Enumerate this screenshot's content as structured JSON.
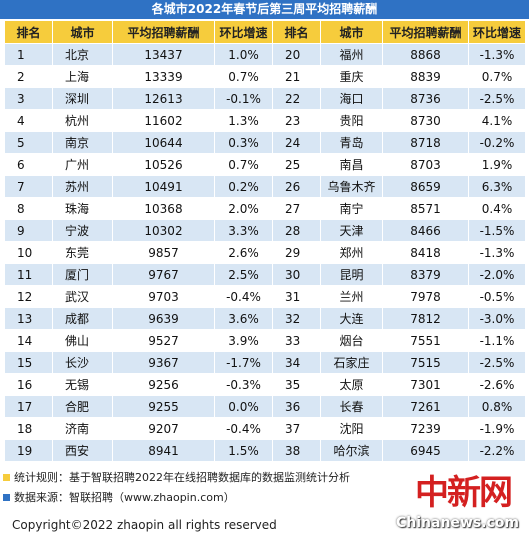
{
  "title": "各城市2022年春节后第三周平均招聘薪酬",
  "headers": [
    "排名",
    "城市",
    "平均招聘薪酬",
    "环比增速",
    "排名",
    "城市",
    "平均招聘薪酬",
    "环比增速"
  ],
  "rows": [
    {
      "rank_a": "1",
      "city_a": "北京",
      "salary_a": "13437",
      "growth_a": "1.0%",
      "rank_b": "20",
      "city_b": "福州",
      "salary_b": "8868",
      "growth_b": "-1.3%"
    },
    {
      "rank_a": "2",
      "city_a": "上海",
      "salary_a": "13339",
      "growth_a": "0.7%",
      "rank_b": "21",
      "city_b": "重庆",
      "salary_b": "8839",
      "growth_b": "0.7%"
    },
    {
      "rank_a": "3",
      "city_a": "深圳",
      "salary_a": "12613",
      "growth_a": "-0.1%",
      "rank_b": "22",
      "city_b": "海口",
      "salary_b": "8736",
      "growth_b": "-2.5%"
    },
    {
      "rank_a": "4",
      "city_a": "杭州",
      "salary_a": "11602",
      "growth_a": "1.3%",
      "rank_b": "23",
      "city_b": "贵阳",
      "salary_b": "8730",
      "growth_b": "4.1%"
    },
    {
      "rank_a": "5",
      "city_a": "南京",
      "salary_a": "10644",
      "growth_a": "0.3%",
      "rank_b": "24",
      "city_b": "青岛",
      "salary_b": "8718",
      "growth_b": "-0.2%"
    },
    {
      "rank_a": "6",
      "city_a": "广州",
      "salary_a": "10526",
      "growth_a": "0.7%",
      "rank_b": "25",
      "city_b": "南昌",
      "salary_b": "8703",
      "growth_b": "1.9%"
    },
    {
      "rank_a": "7",
      "city_a": "苏州",
      "salary_a": "10491",
      "growth_a": "0.2%",
      "rank_b": "26",
      "city_b": "乌鲁木齐",
      "salary_b": "8659",
      "growth_b": "6.3%"
    },
    {
      "rank_a": "8",
      "city_a": "珠海",
      "salary_a": "10368",
      "growth_a": "2.0%",
      "rank_b": "27",
      "city_b": "南宁",
      "salary_b": "8571",
      "growth_b": "0.4%"
    },
    {
      "rank_a": "9",
      "city_a": "宁波",
      "salary_a": "10302",
      "growth_a": "3.3%",
      "rank_b": "28",
      "city_b": "天津",
      "salary_b": "8466",
      "growth_b": "-1.5%"
    },
    {
      "rank_a": "10",
      "city_a": "东莞",
      "salary_a": "9857",
      "growth_a": "2.6%",
      "rank_b": "29",
      "city_b": "郑州",
      "salary_b": "8418",
      "growth_b": "-1.3%"
    },
    {
      "rank_a": "11",
      "city_a": "厦门",
      "salary_a": "9767",
      "growth_a": "2.5%",
      "rank_b": "30",
      "city_b": "昆明",
      "salary_b": "8379",
      "growth_b": "-2.0%"
    },
    {
      "rank_a": "12",
      "city_a": "武汉",
      "salary_a": "9703",
      "growth_a": "-0.4%",
      "rank_b": "31",
      "city_b": "兰州",
      "salary_b": "7978",
      "growth_b": "-0.5%"
    },
    {
      "rank_a": "13",
      "city_a": "成都",
      "salary_a": "9639",
      "growth_a": "3.6%",
      "rank_b": "32",
      "city_b": "大连",
      "salary_b": "7812",
      "growth_b": "-3.0%"
    },
    {
      "rank_a": "14",
      "city_a": "佛山",
      "salary_a": "9527",
      "growth_a": "3.9%",
      "rank_b": "33",
      "city_b": "烟台",
      "salary_b": "7551",
      "growth_b": "-1.1%"
    },
    {
      "rank_a": "15",
      "city_a": "长沙",
      "salary_a": "9367",
      "growth_a": "-1.7%",
      "rank_b": "34",
      "city_b": "石家庄",
      "salary_b": "7515",
      "growth_b": "-2.5%"
    },
    {
      "rank_a": "16",
      "city_a": "无锡",
      "salary_a": "9256",
      "growth_a": "-0.3%",
      "rank_b": "35",
      "city_b": "太原",
      "salary_b": "7301",
      "growth_b": "-2.6%"
    },
    {
      "rank_a": "17",
      "city_a": "合肥",
      "salary_a": "9255",
      "growth_a": "0.0%",
      "rank_b": "36",
      "city_b": "长春",
      "salary_b": "7261",
      "growth_b": "0.8%"
    },
    {
      "rank_a": "18",
      "city_a": "济南",
      "salary_a": "9207",
      "growth_a": "-0.4%",
      "rank_b": "37",
      "city_b": "沈阳",
      "salary_b": "7239",
      "growth_b": "-1.9%"
    },
    {
      "rank_a": "19",
      "city_a": "西安",
      "salary_a": "8941",
      "growth_a": "1.5%",
      "rank_b": "38",
      "city_b": "哈尔滨",
      "salary_b": "6945",
      "growth_b": "-2.2%"
    }
  ],
  "notes": {
    "rule": "统计规则：基于智联招聘2022年在线招聘数据库的数据监测统计分析",
    "rule_color": "#f6cc3c",
    "source": "数据来源：智联招聘（www.zhaopin.com）",
    "source_color": "#2f72c4"
  },
  "copyright": "Copyright©2022 zhaopin all rights reserved",
  "watermark": {
    "cn": "中新网",
    "en": "Chinanews.com"
  },
  "colors": {
    "title_bg": "#2f72c4",
    "header_bg": "#f6cc3c",
    "odd_row_bg": "#d8e6f4"
  }
}
